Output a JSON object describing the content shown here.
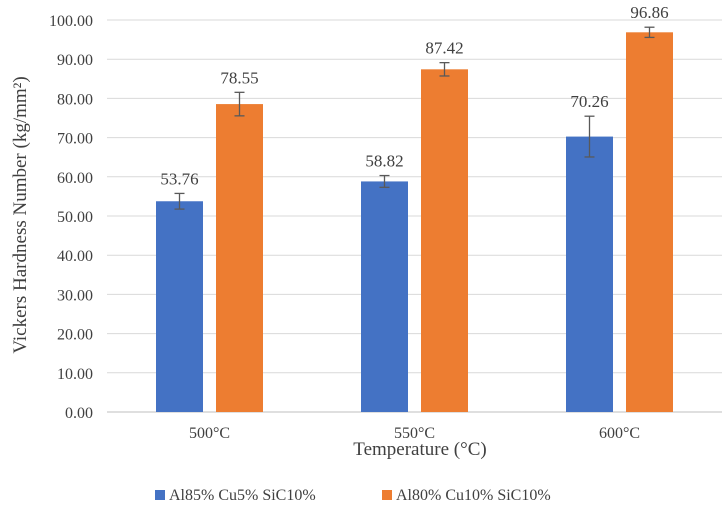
{
  "chart_data": {
    "type": "bar",
    "title": "",
    "xlabel": "Temperature (°C)",
    "ylabel": "Vickers Hardness Number (kg/mm²)",
    "ylim": [
      0,
      100
    ],
    "ytick_step": 10,
    "ytick_labels": [
      "0.00",
      "10.00",
      "20.00",
      "30.00",
      "40.00",
      "50.00",
      "60.00",
      "70.00",
      "80.00",
      "90.00",
      "100.00"
    ],
    "categories": [
      "500°C",
      "550°C",
      "600°C"
    ],
    "grid": true,
    "legend_position": "bottom",
    "series": [
      {
        "name": "Al85% Cu5% SiC10%",
        "color": "#4472C4",
        "values": [
          53.76,
          58.82,
          70.26
        ],
        "labels": [
          "53.76",
          "58.82",
          "70.26"
        ],
        "errors": [
          2.0,
          1.5,
          5.2
        ]
      },
      {
        "name": "Al80% Cu10% SiC10%",
        "color": "#ED7D31",
        "values": [
          78.55,
          87.42,
          96.86
        ],
        "labels": [
          "78.55",
          "87.42",
          "96.86"
        ],
        "errors": [
          3.0,
          1.7,
          1.3
        ]
      }
    ]
  }
}
